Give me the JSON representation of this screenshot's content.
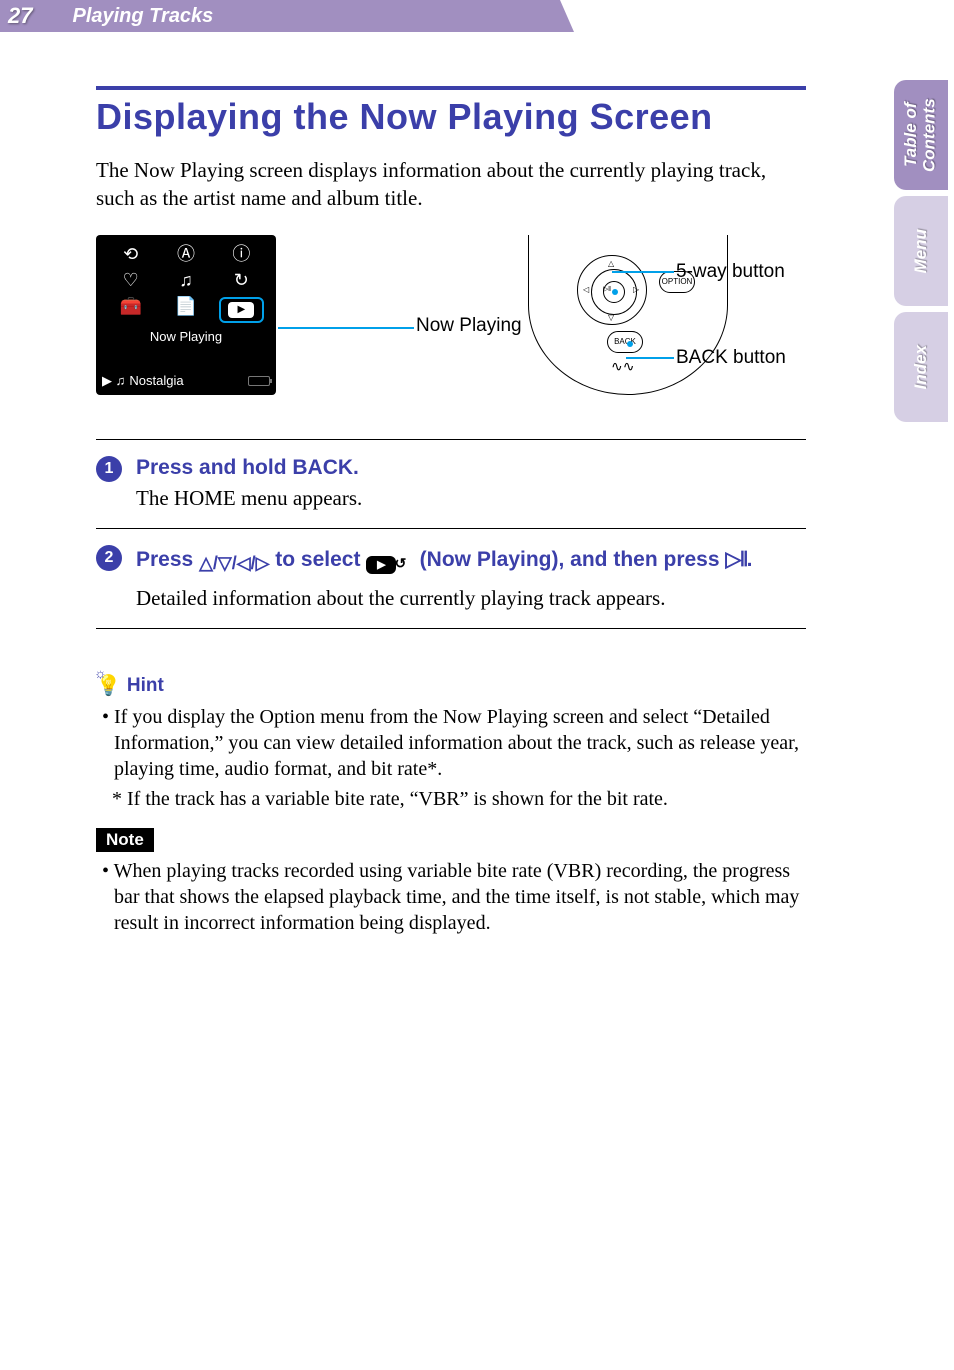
{
  "page_number": "27",
  "section": "Playing Tracks",
  "title": "Displaying the Now Playing Screen",
  "intro": "The Now Playing screen displays information about the currently playing track, such as the artist name and album title.",
  "device": {
    "label": "Now Playing",
    "track": "Nostalgia",
    "icons_row1": [
      "⟲",
      "Ⓐ",
      "ⓘ"
    ],
    "icons_row2": [
      "♡",
      "♫",
      "↻"
    ],
    "icons_row3": [
      "🧰",
      "📄"
    ],
    "selected_icon": "▶"
  },
  "captions": {
    "now_playing": "Now Playing",
    "five_way": "5-way button",
    "back": "BACK button"
  },
  "controller": {
    "option": "OPTION",
    "back": "BACK"
  },
  "steps": [
    {
      "num": "1",
      "title": "Press and hold BACK.",
      "body": "The HOME menu appears."
    },
    {
      "num": "2",
      "title_pre": "Press ",
      "arrows": "△/▽/◁/▷",
      "title_mid": " to select ",
      "title_post": " (Now Playing), and then press ",
      "play_glyph": "▷𝍪",
      "title_end": ".",
      "body": "Detailed information about the currently playing track appears."
    }
  ],
  "hint": {
    "label": "Hint",
    "bullet": "• If you display the Option menu from the Now Playing screen and select “Detailed Information,” you can view detailed information about the track, such as release year, playing time, audio format, and bit rate*.",
    "sub": "* If the track has a variable bite rate, “VBR” is shown for the bit rate."
  },
  "note": {
    "label": "Note",
    "text": "• When playing tracks recorded using variable bite rate (VBR) recording, the progress bar that shows the elapsed playback time, and the time itself, is not stable, which may result in incorrect information being displayed."
  },
  "tabs": [
    {
      "label": "Table of\nContents",
      "active": true
    },
    {
      "label": "Menu",
      "active": false
    },
    {
      "label": "Index",
      "active": false
    }
  ],
  "colors": {
    "header_bg": "#a18fc0",
    "accent": "#3b3fa9",
    "tab_inactive": "#d6cfe4",
    "callout_line": "#00a0e9"
  }
}
